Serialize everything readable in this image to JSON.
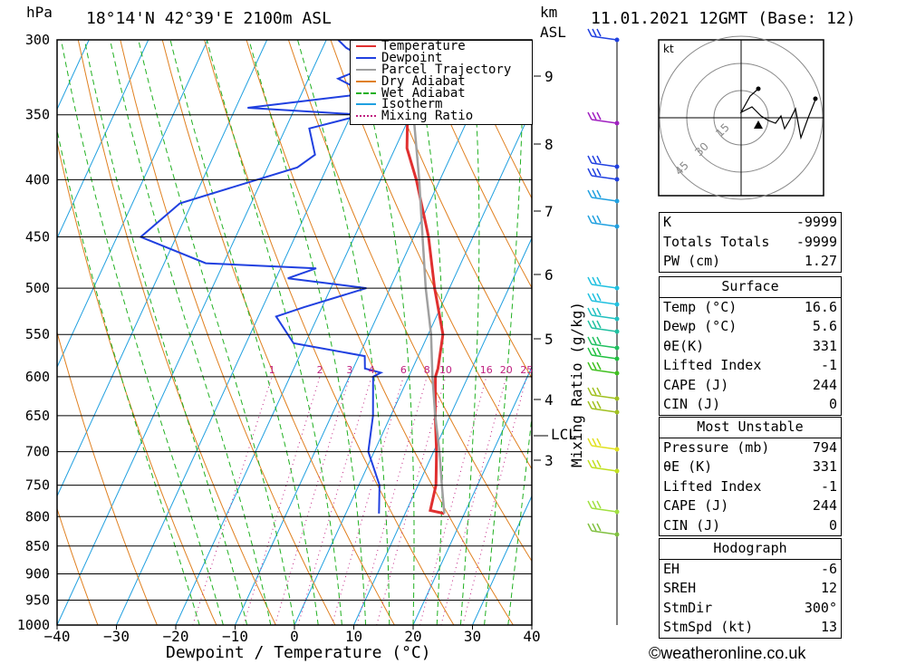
{
  "header": {
    "location": "18°14'N  42°39'E  2100m  ASL",
    "datetime": "11.01.2021  12GMT  (Base: 12)",
    "hpa_label": "hPa",
    "km_label": "km",
    "asl_label": "ASL"
  },
  "axes": {
    "xlabel": "Dewpoint / Temperature (°C)",
    "x_ticks": [
      "−40",
      "−30",
      "−20",
      "−10",
      "0",
      "10",
      "20",
      "30",
      "40"
    ],
    "pressure_ticks": [
      "300",
      "350",
      "400",
      "450",
      "500",
      "550",
      "600",
      "650",
      "700",
      "750",
      "800",
      "850",
      "900",
      "950",
      "1000"
    ],
    "km_ticks": [
      "9",
      "8",
      "7",
      "6",
      "5",
      "4",
      "3"
    ],
    "lcl_label": "LCL",
    "mixing_ratio_label": "Mixing Ratio (g/kg)",
    "mixing_ratio_values": [
      "1",
      "2",
      "3",
      "4",
      "6",
      "8",
      "10",
      "16",
      "20",
      "25"
    ]
  },
  "legend": [
    {
      "name": "Temperature",
      "color": "#e03030",
      "style": "solid"
    },
    {
      "name": "Dewpoint",
      "color": "#2040e0",
      "style": "solid"
    },
    {
      "name": "Parcel Trajectory",
      "color": "#a0a0a0",
      "style": "solid"
    },
    {
      "name": "Dry Adiabat",
      "color": "#e08020",
      "style": "solid"
    },
    {
      "name": "Wet Adiabat",
      "color": "#20b020",
      "style": "dashed"
    },
    {
      "name": "Isotherm",
      "color": "#20a0e0",
      "style": "solid"
    },
    {
      "name": "Mixing Ratio",
      "color": "#c02080",
      "style": "dotted"
    }
  ],
  "hodograph": {
    "unit_label": "kt",
    "ring_labels": [
      "15",
      "30",
      "45"
    ]
  },
  "indices": {
    "rows": [
      {
        "k": "K",
        "v": "-9999"
      },
      {
        "k": "Totals Totals",
        "v": "-9999"
      },
      {
        "k": "PW (cm)",
        "v": "1.27"
      }
    ]
  },
  "surface": {
    "title": "Surface",
    "rows": [
      {
        "k": "Temp (°C)",
        "v": "16.6"
      },
      {
        "k": "Dewp (°C)",
        "v": "5.6"
      },
      {
        "k": "θE(K)",
        "v": "331"
      },
      {
        "k": "Lifted Index",
        "v": "-1"
      },
      {
        "k": "CAPE (J)",
        "v": "244"
      },
      {
        "k": "CIN (J)",
        "v": "0"
      }
    ]
  },
  "most_unstable": {
    "title": "Most Unstable",
    "rows": [
      {
        "k": "Pressure (mb)",
        "v": "794"
      },
      {
        "k": "θE (K)",
        "v": "331"
      },
      {
        "k": "Lifted Index",
        "v": "-1"
      },
      {
        "k": "CAPE (J)",
        "v": "244"
      },
      {
        "k": "CIN (J)",
        "v": "0"
      }
    ]
  },
  "hodo_params": {
    "title": "Hodograph",
    "rows": [
      {
        "k": "EH",
        "v": "-6"
      },
      {
        "k": "SREH",
        "v": "12"
      },
      {
        "k": "StmDir",
        "v": "300°"
      },
      {
        "k": "StmSpd (kt)",
        "v": "13"
      }
    ]
  },
  "footer": {
    "copyright": "©weatheronline.co.uk"
  },
  "chart_data": {
    "type": "line",
    "title": "18°14'N  42°39'E  2100m  ASL",
    "xlabel": "Dewpoint / Temperature (°C)",
    "ylabel": "hPa",
    "xlim": [
      -40,
      40
    ],
    "ylim": [
      1000,
      300
    ],
    "y_scale": "log-pressure, skewed isotherms",
    "series": [
      {
        "name": "Temperature",
        "color": "#e03030",
        "points": [
          [
            795,
            16.6
          ],
          [
            790,
            14
          ],
          [
            750,
            13
          ],
          [
            700,
            10.5
          ],
          [
            650,
            7.5
          ],
          [
            600,
            4.5
          ],
          [
            590,
            4.3
          ],
          [
            550,
            2.5
          ],
          [
            500,
            -2.5
          ],
          [
            450,
            -7.5
          ],
          [
            400,
            -14
          ],
          [
            375,
            -18
          ],
          [
            350,
            -20.5
          ],
          [
            325,
            -25
          ],
          [
            300,
            -29
          ]
        ]
      },
      {
        "name": "Dewpoint",
        "color": "#2040e0",
        "points": [
          [
            795,
            5.6
          ],
          [
            750,
            3.5
          ],
          [
            700,
            -1
          ],
          [
            650,
            -3
          ],
          [
            600,
            -6
          ],
          [
            595,
            -5
          ],
          [
            590,
            -8
          ],
          [
            575,
            -9
          ],
          [
            560,
            -22
          ],
          [
            530,
            -27
          ],
          [
            520,
            -23
          ],
          [
            500,
            -14
          ],
          [
            490,
            -28
          ],
          [
            480,
            -24
          ],
          [
            475,
            -43
          ],
          [
            450,
            -56
          ],
          [
            420,
            -52
          ],
          [
            390,
            -35
          ],
          [
            380,
            -33
          ],
          [
            360,
            -36
          ],
          [
            350,
            -28
          ],
          [
            345,
            -48
          ],
          [
            335,
            -29
          ],
          [
            325,
            -35
          ],
          [
            315,
            -30
          ],
          [
            305,
            -36
          ],
          [
            300,
            -38
          ]
        ]
      },
      {
        "name": "Parcel Trajectory",
        "color": "#a0a0a0",
        "points": [
          [
            795,
            16.6
          ],
          [
            750,
            14
          ],
          [
            700,
            11
          ],
          [
            650,
            7.5
          ],
          [
            600,
            4
          ],
          [
            550,
            0.5
          ],
          [
            500,
            -4
          ],
          [
            450,
            -8.5
          ],
          [
            400,
            -13.5
          ],
          [
            350,
            -19.5
          ],
          [
            300,
            -26.5
          ]
        ]
      }
    ]
  }
}
